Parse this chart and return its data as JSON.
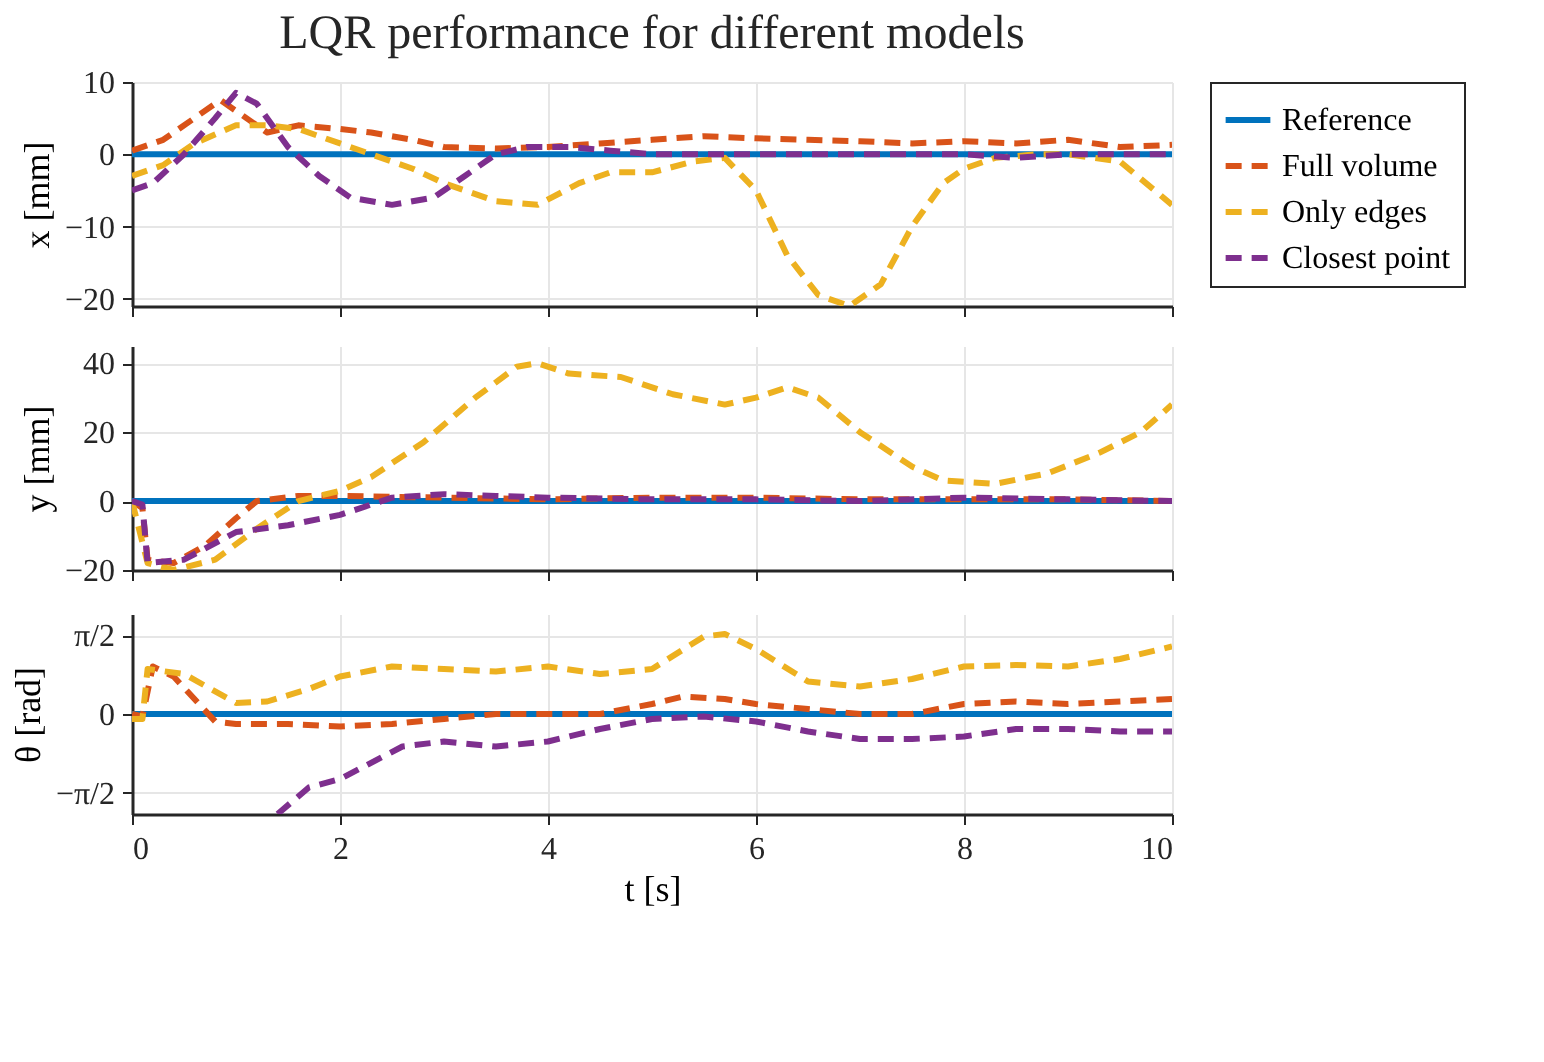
{
  "chart_data": [
    {
      "type": "line",
      "title": "LQR performance for different models",
      "ylabel": "x [mm]",
      "xlim": [
        0,
        10
      ],
      "xticks": [
        0,
        2,
        4,
        6,
        8,
        10
      ],
      "ylim": [
        -21,
        10
      ],
      "yticks": [
        -20,
        -10,
        0,
        10
      ],
      "grid": true,
      "legend": "right",
      "tick_labels": "y",
      "series": [
        {
          "name": "Reference",
          "color": "#0072bd",
          "line_style": "solid",
          "x": [
            0,
            10
          ],
          "values": [
            0,
            0
          ]
        },
        {
          "name": "Full volume",
          "color": "#d95319",
          "line_style": "dashed",
          "x": [
            0,
            0.3,
            0.6,
            0.85,
            1.1,
            1.3,
            1.6,
            2,
            2.3,
            2.7,
            3,
            3.5,
            4,
            4.5,
            5,
            5.5,
            6,
            6.5,
            7,
            7.5,
            8,
            8.5,
            9,
            9.5,
            10
          ],
          "values": [
            0.5,
            2,
            5,
            7.5,
            5,
            3,
            4,
            3.5,
            3,
            2,
            1,
            0.8,
            1,
            1.5,
            2,
            2.5,
            2.2,
            2,
            1.8,
            1.5,
            1.8,
            1.5,
            2,
            1,
            1.3
          ]
        },
        {
          "name": "Only edges",
          "color": "#edb120",
          "line_style": "dashed",
          "x": [
            0,
            0.3,
            0.6,
            1,
            1.3,
            1.6,
            2,
            2.3,
            2.7,
            3,
            3.5,
            3.9,
            4.3,
            4.6,
            5,
            5.4,
            5.7,
            6,
            6.3,
            6.6,
            6.9,
            7.2,
            7.5,
            7.8,
            8,
            8.3,
            8.7,
            9,
            9.5,
            10
          ],
          "values": [
            -3,
            -1.5,
            1.5,
            4,
            4,
            3.5,
            1.5,
            0,
            -2,
            -4,
            -6.5,
            -7,
            -4,
            -2.5,
            -2.5,
            -1,
            -0.5,
            -5,
            -14,
            -19.5,
            -21,
            -18,
            -10,
            -4,
            -2,
            -0.5,
            0,
            0,
            -1,
            -7
          ]
        },
        {
          "name": "Closest point",
          "color": "#7e2f8e",
          "line_style": "dashed",
          "x": [
            0,
            0.2,
            0.5,
            0.8,
            1,
            1.2,
            1.5,
            1.8,
            2.1,
            2.5,
            2.9,
            3.2,
            3.5,
            3.8,
            4.2,
            4.6,
            5,
            6,
            7,
            8,
            8.5,
            9,
            10
          ],
          "values": [
            -5,
            -4,
            0,
            5,
            8.5,
            7,
            1,
            -3,
            -6,
            -7,
            -6,
            -3,
            0,
            1,
            1,
            0.5,
            0,
            0,
            0,
            0,
            -0.5,
            0,
            0
          ]
        }
      ]
    },
    {
      "type": "line",
      "ylabel": "y [mm]",
      "xlim": [
        0,
        10
      ],
      "xticks": [
        0,
        2,
        4,
        6,
        8,
        10
      ],
      "ylim": [
        -20,
        45
      ],
      "yticks": [
        -20,
        0,
        20,
        40
      ],
      "grid": true,
      "tick_labels": "y",
      "series": [
        {
          "name": "Reference",
          "color": "#0072bd",
          "line_style": "solid",
          "x": [
            0,
            10
          ],
          "values": [
            0,
            0
          ]
        },
        {
          "name": "Full volume",
          "color": "#d95319",
          "line_style": "dashed",
          "x": [
            0,
            0.1,
            0.15,
            0.4,
            0.7,
            1,
            1.2,
            1.6,
            2,
            3,
            4,
            5,
            6,
            7,
            8,
            9,
            10
          ],
          "values": [
            0,
            -2,
            -17,
            -18,
            -13,
            -5,
            0,
            1.5,
            1.5,
            1,
            0.5,
            1,
            1,
            0.5,
            0.5,
            0.5,
            0
          ]
        },
        {
          "name": "Only edges",
          "color": "#edb120",
          "line_style": "dashed",
          "x": [
            0,
            0.15,
            0.4,
            0.8,
            1.2,
            1.6,
            2,
            2.3,
            2.8,
            3.3,
            3.7,
            3.9,
            4.2,
            4.7,
            5.2,
            5.7,
            6,
            6.3,
            6.6,
            7,
            7.5,
            7.8,
            8.3,
            8.8,
            9.3,
            9.7,
            10
          ],
          "values": [
            0,
            -18,
            -20,
            -17,
            -8,
            0,
            3,
            7,
            17,
            30,
            39,
            40,
            37,
            36,
            31,
            28,
            30,
            33,
            30,
            20,
            10,
            6,
            5,
            8,
            14,
            20,
            28
          ]
        },
        {
          "name": "Closest point",
          "color": "#7e2f8e",
          "line_style": "dashed",
          "x": [
            0,
            0.1,
            0.15,
            0.5,
            1,
            1.5,
            2,
            2.5,
            3,
            3.5,
            4,
            5,
            6,
            7,
            8,
            9,
            10
          ],
          "values": [
            0,
            -1,
            -18,
            -17,
            -9,
            -7,
            -4,
            1,
            2,
            1.5,
            1,
            0.5,
            0.5,
            0,
            1,
            0.5,
            0
          ]
        }
      ]
    },
    {
      "type": "line",
      "ylabel": "θ [rad]",
      "xlabel": "t [s]",
      "xlim": [
        0,
        10
      ],
      "xticks": [
        0,
        2,
        4,
        6,
        8,
        10
      ],
      "ylim": [
        -2,
        2
      ],
      "yticks": [
        {
          "value": -1.5708,
          "label": "−π/2"
        },
        0,
        {
          "value": 1.5708,
          "label": "π/2"
        }
      ],
      "grid": true,
      "series": [
        {
          "name": "Reference",
          "color": "#0072bd",
          "line_style": "solid",
          "x": [
            0,
            10
          ],
          "values": [
            0,
            0
          ]
        },
        {
          "name": "Full volume",
          "color": "#d95319",
          "line_style": "dashed",
          "x": [
            0,
            0.1,
            0.2,
            0.4,
            0.8,
            1,
            1.5,
            2,
            2.5,
            3,
            3.5,
            4,
            4.5,
            5,
            5.3,
            5.7,
            6,
            6.5,
            7,
            7.5,
            8,
            8.5,
            9,
            9.5,
            10
          ],
          "values": [
            0,
            -0.05,
            0.95,
            0.75,
            -0.15,
            -0.2,
            -0.2,
            -0.25,
            -0.2,
            -0.1,
            0,
            0,
            0,
            0.2,
            0.35,
            0.3,
            0.2,
            0.1,
            0,
            0,
            0.2,
            0.25,
            0.2,
            0.25,
            0.3
          ]
        },
        {
          "name": "Only edges",
          "color": "#edb120",
          "line_style": "dashed",
          "x": [
            0,
            0.1,
            0.15,
            0.5,
            1,
            1.3,
            1.7,
            2,
            2.5,
            3,
            3.5,
            4,
            4.5,
            5,
            5.5,
            5.7,
            6,
            6.5,
            7,
            7.5,
            8,
            8.5,
            9,
            9.5,
            10
          ],
          "values": [
            -0.1,
            -0.1,
            0.9,
            0.8,
            0.22,
            0.25,
            0.5,
            0.75,
            0.95,
            0.9,
            0.85,
            0.95,
            0.8,
            0.9,
            1.55,
            1.6,
            1.3,
            0.65,
            0.55,
            0.7,
            0.95,
            0.98,
            0.95,
            1.1,
            1.35
          ]
        },
        {
          "name": "Closest point",
          "color": "#7e2f8e",
          "line_style": "dashed",
          "x": [
            1.4,
            1.7,
            2,
            2.6,
            3,
            3.5,
            4,
            4.5,
            5,
            5.5,
            6,
            6.5,
            7,
            7.5,
            8,
            8.5,
            9,
            9.5,
            10
          ],
          "values": [
            -2.0,
            -1.47,
            -1.3,
            -0.65,
            -0.55,
            -0.65,
            -0.55,
            -0.3,
            -0.1,
            -0.05,
            -0.15,
            -0.35,
            -0.5,
            -0.5,
            -0.45,
            -0.3,
            -0.3,
            -0.35,
            -0.35
          ]
        }
      ]
    }
  ]
}
